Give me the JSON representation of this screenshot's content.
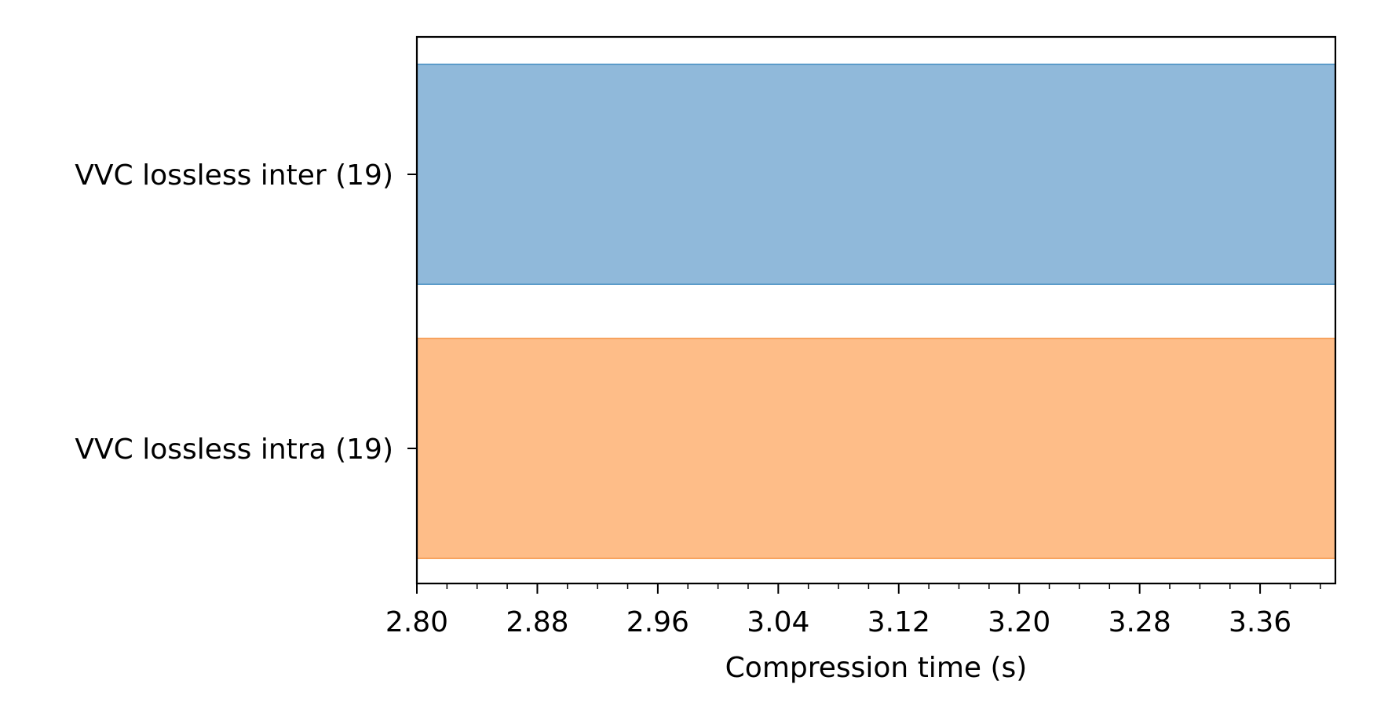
{
  "chart_data": {
    "type": "bar",
    "orientation": "horizontal",
    "title": "",
    "xlabel": "Compression time (s)",
    "ylabel": "",
    "xlim": [
      2.8,
      3.41
    ],
    "x_tick_labels": [
      "2.80",
      "2.88",
      "2.96",
      "3.04",
      "3.12",
      "3.20",
      "3.28",
      "3.36"
    ],
    "x_tick_values": [
      2.8,
      2.88,
      2.96,
      3.04,
      3.12,
      3.2,
      3.28,
      3.36
    ],
    "x_minor_step": 0.02,
    "bars": [
      {
        "label": "VVC lossless inter (19)",
        "range": [
          2.8,
          3.41
        ],
        "color": "#90b9da",
        "edge": "#5b9bc9"
      },
      {
        "label": "VVC lossless intra (19)",
        "range": [
          2.8,
          3.41
        ],
        "color": "#febd88",
        "edge": "#f7a35f"
      }
    ],
    "grid": false,
    "legend": "none"
  }
}
